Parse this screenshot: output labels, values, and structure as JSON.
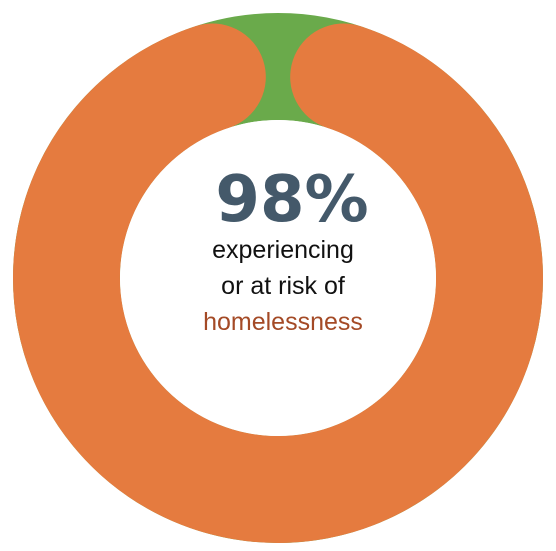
{
  "chart_data": {
    "type": "pie",
    "variant": "donut",
    "title": "",
    "slices": [
      {
        "label": "experiencing or at risk of homelessness",
        "value": 98,
        "color": "#e57b3f"
      },
      {
        "label": "",
        "value": 2,
        "color": "#6aaa4b"
      }
    ],
    "center": {
      "value_text": "98%",
      "line1": "experiencing",
      "line2": "or at risk of",
      "line3": "homelessness"
    },
    "colors": {
      "main": "#e57b3f",
      "remainder": "#6aaa4b",
      "value_text": "#44596a",
      "accent_text": "#a44a26"
    },
    "legend": "none",
    "grid": false
  }
}
